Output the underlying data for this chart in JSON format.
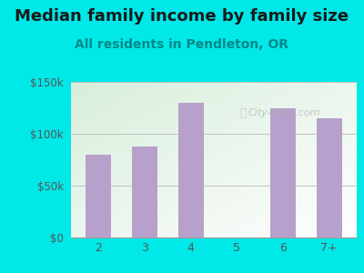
{
  "title": "Median family income by family size",
  "subtitle": "All residents in Pendleton, OR",
  "categories": [
    "2",
    "3",
    "4",
    "5",
    "6",
    "7+"
  ],
  "values": [
    80000,
    88000,
    130000,
    null,
    125000,
    115000
  ],
  "bar_color": "#b8a0cc",
  "background_color": "#00e8e8",
  "plot_bg_color_topleft": "#d8eedc",
  "plot_bg_color_bottomright": "#f5fff5",
  "ylim": [
    0,
    150000
  ],
  "yticks": [
    0,
    50000,
    100000,
    150000
  ],
  "ytick_labels": [
    "$0",
    "$50k",
    "$100k",
    "$150k"
  ],
  "title_fontsize": 13,
  "subtitle_fontsize": 10,
  "title_color": "#1a1a1a",
  "subtitle_color": "#008888",
  "tick_color": "#555555",
  "watermark": "City-Data.com"
}
